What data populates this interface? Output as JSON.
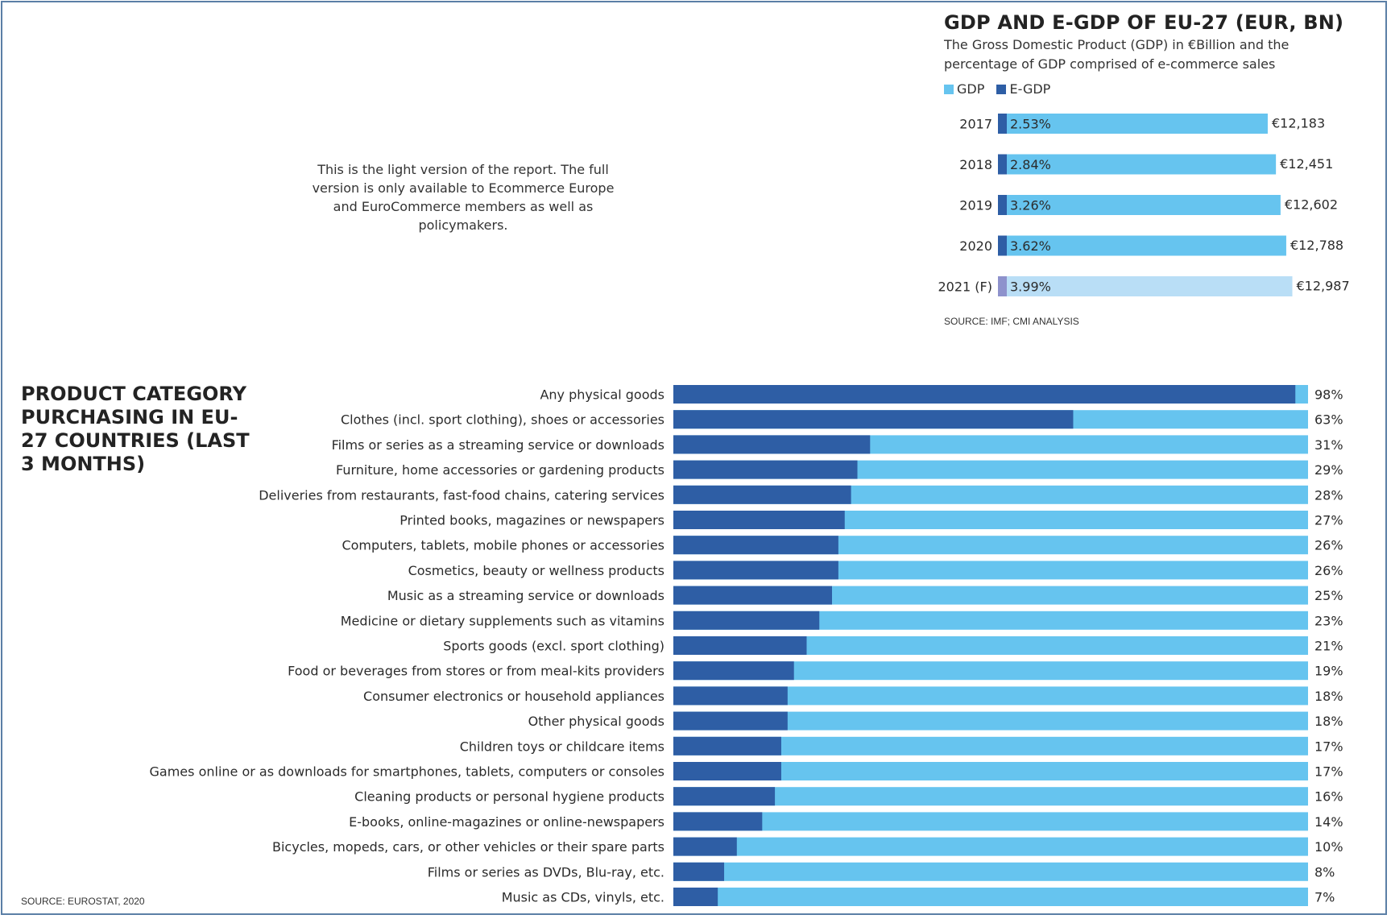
{
  "colors": {
    "gdp": "#66c4ef",
    "egdp": "#2e5ea5",
    "gdp_forecast": "#b9def6",
    "egdp_forecast": "#8e92cc",
    "frame": "#5b7fa6"
  },
  "light_note": "This is the light version of the report. The full version is only available to Ecommerce Europe and EuroCommerce members as well as policymakers.",
  "chart_data": [
    {
      "type": "bar",
      "orientation": "horizontal",
      "stacked": true,
      "title": "GDP AND E-GDP OF EU-27 (EUR, BN)",
      "subtitle": "The Gross Domestic Product (GDP) in €Billion and the percentage of GDP comprised of e-commerce sales",
      "legend": [
        "GDP",
        "E-GDP"
      ],
      "legend_position": "top-left",
      "categories": [
        "2017",
        "2018",
        "2019",
        "2020",
        "2021 (F)"
      ],
      "series": [
        {
          "name": "GDP",
          "values": [
            12183,
            12451,
            12602,
            12788,
            12987
          ],
          "labels": [
            "€12,183",
            "€12,451",
            "€12,602",
            "€12,788",
            "€12,987"
          ]
        },
        {
          "name": "E-GDP",
          "values": [
            2.53,
            2.84,
            3.26,
            3.62,
            3.99
          ],
          "labels": [
            "2.53%",
            "2.84%",
            "3.26%",
            "3.62%",
            "3.99%"
          ]
        }
      ],
      "source": "SOURCE: IMF; CMI ANALYSIS",
      "grid": false
    },
    {
      "type": "bar",
      "orientation": "horizontal",
      "title": "PRODUCT CATEGORY PURCHASING IN EU-27 COUNTRIES (LAST 3 MONTHS)",
      "categories": [
        "Any physical goods",
        "Clothes (incl. sport clothing), shoes or accessories",
        "Films or series as a streaming service or downloads",
        "Furniture, home accessories or gardening products",
        "Deliveries from restaurants, fast-food chains, catering services",
        "Printed books, magazines or newspapers",
        "Computers, tablets, mobile phones or accessories",
        "Cosmetics, beauty or wellness products",
        "Music as a streaming service or downloads",
        "Medicine or dietary supplements such as vitamins",
        "Sports goods (excl. sport clothing)",
        "Food or beverages from stores or from meal-kits providers",
        "Consumer electronics or household appliances",
        "Other physical goods",
        "Children toys or childcare items",
        "Games online or as downloads for smartphones, tablets, computers or consoles",
        "Cleaning products or personal hygiene products",
        "E-books, online-magazines or online-newspapers",
        "Bicycles, mopeds, cars, or other vehicles or their spare parts",
        "Films or series as DVDs, Blu-ray, etc.",
        "Music as CDs, vinyls, etc."
      ],
      "values": [
        98,
        63,
        31,
        29,
        28,
        27,
        26,
        26,
        25,
        23,
        21,
        19,
        18,
        18,
        17,
        17,
        16,
        14,
        10,
        8,
        7
      ],
      "value_labels": [
        "98%",
        "63%",
        "31%",
        "29%",
        "28%",
        "27%",
        "26%",
        "26%",
        "25%",
        "23%",
        "21%",
        "19%",
        "18%",
        "18%",
        "17%",
        "17%",
        "16%",
        "14%",
        "10%",
        "8%",
        "7%"
      ],
      "xlim": [
        0,
        100
      ],
      "source": "SOURCE: EUROSTAT, 2020",
      "grid": false
    }
  ]
}
